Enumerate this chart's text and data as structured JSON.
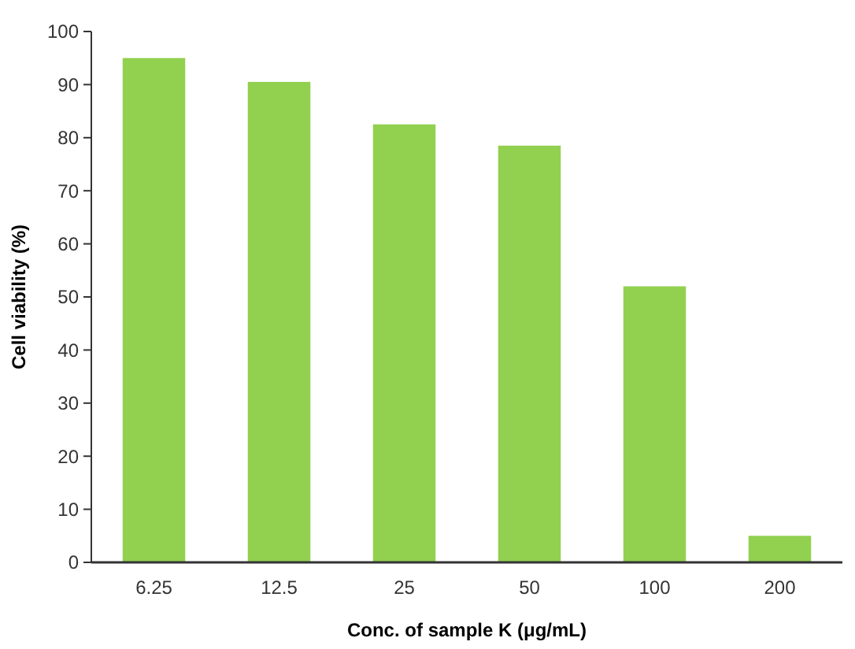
{
  "chart_data": {
    "type": "bar",
    "xlabel": "Conc. of sample K (μg/mL)",
    "ylabel": "Cell viability (%)",
    "categories": [
      "6.25",
      "12.5",
      "25",
      "50",
      "100",
      "200"
    ],
    "values": [
      95,
      90.5,
      82.5,
      78.5,
      52,
      5
    ],
    "color": "#92d050",
    "ylim": [
      0,
      100
    ],
    "yticks": [
      0,
      10,
      20,
      30,
      40,
      50,
      60,
      70,
      80,
      90,
      100
    ],
    "grid": false
  }
}
